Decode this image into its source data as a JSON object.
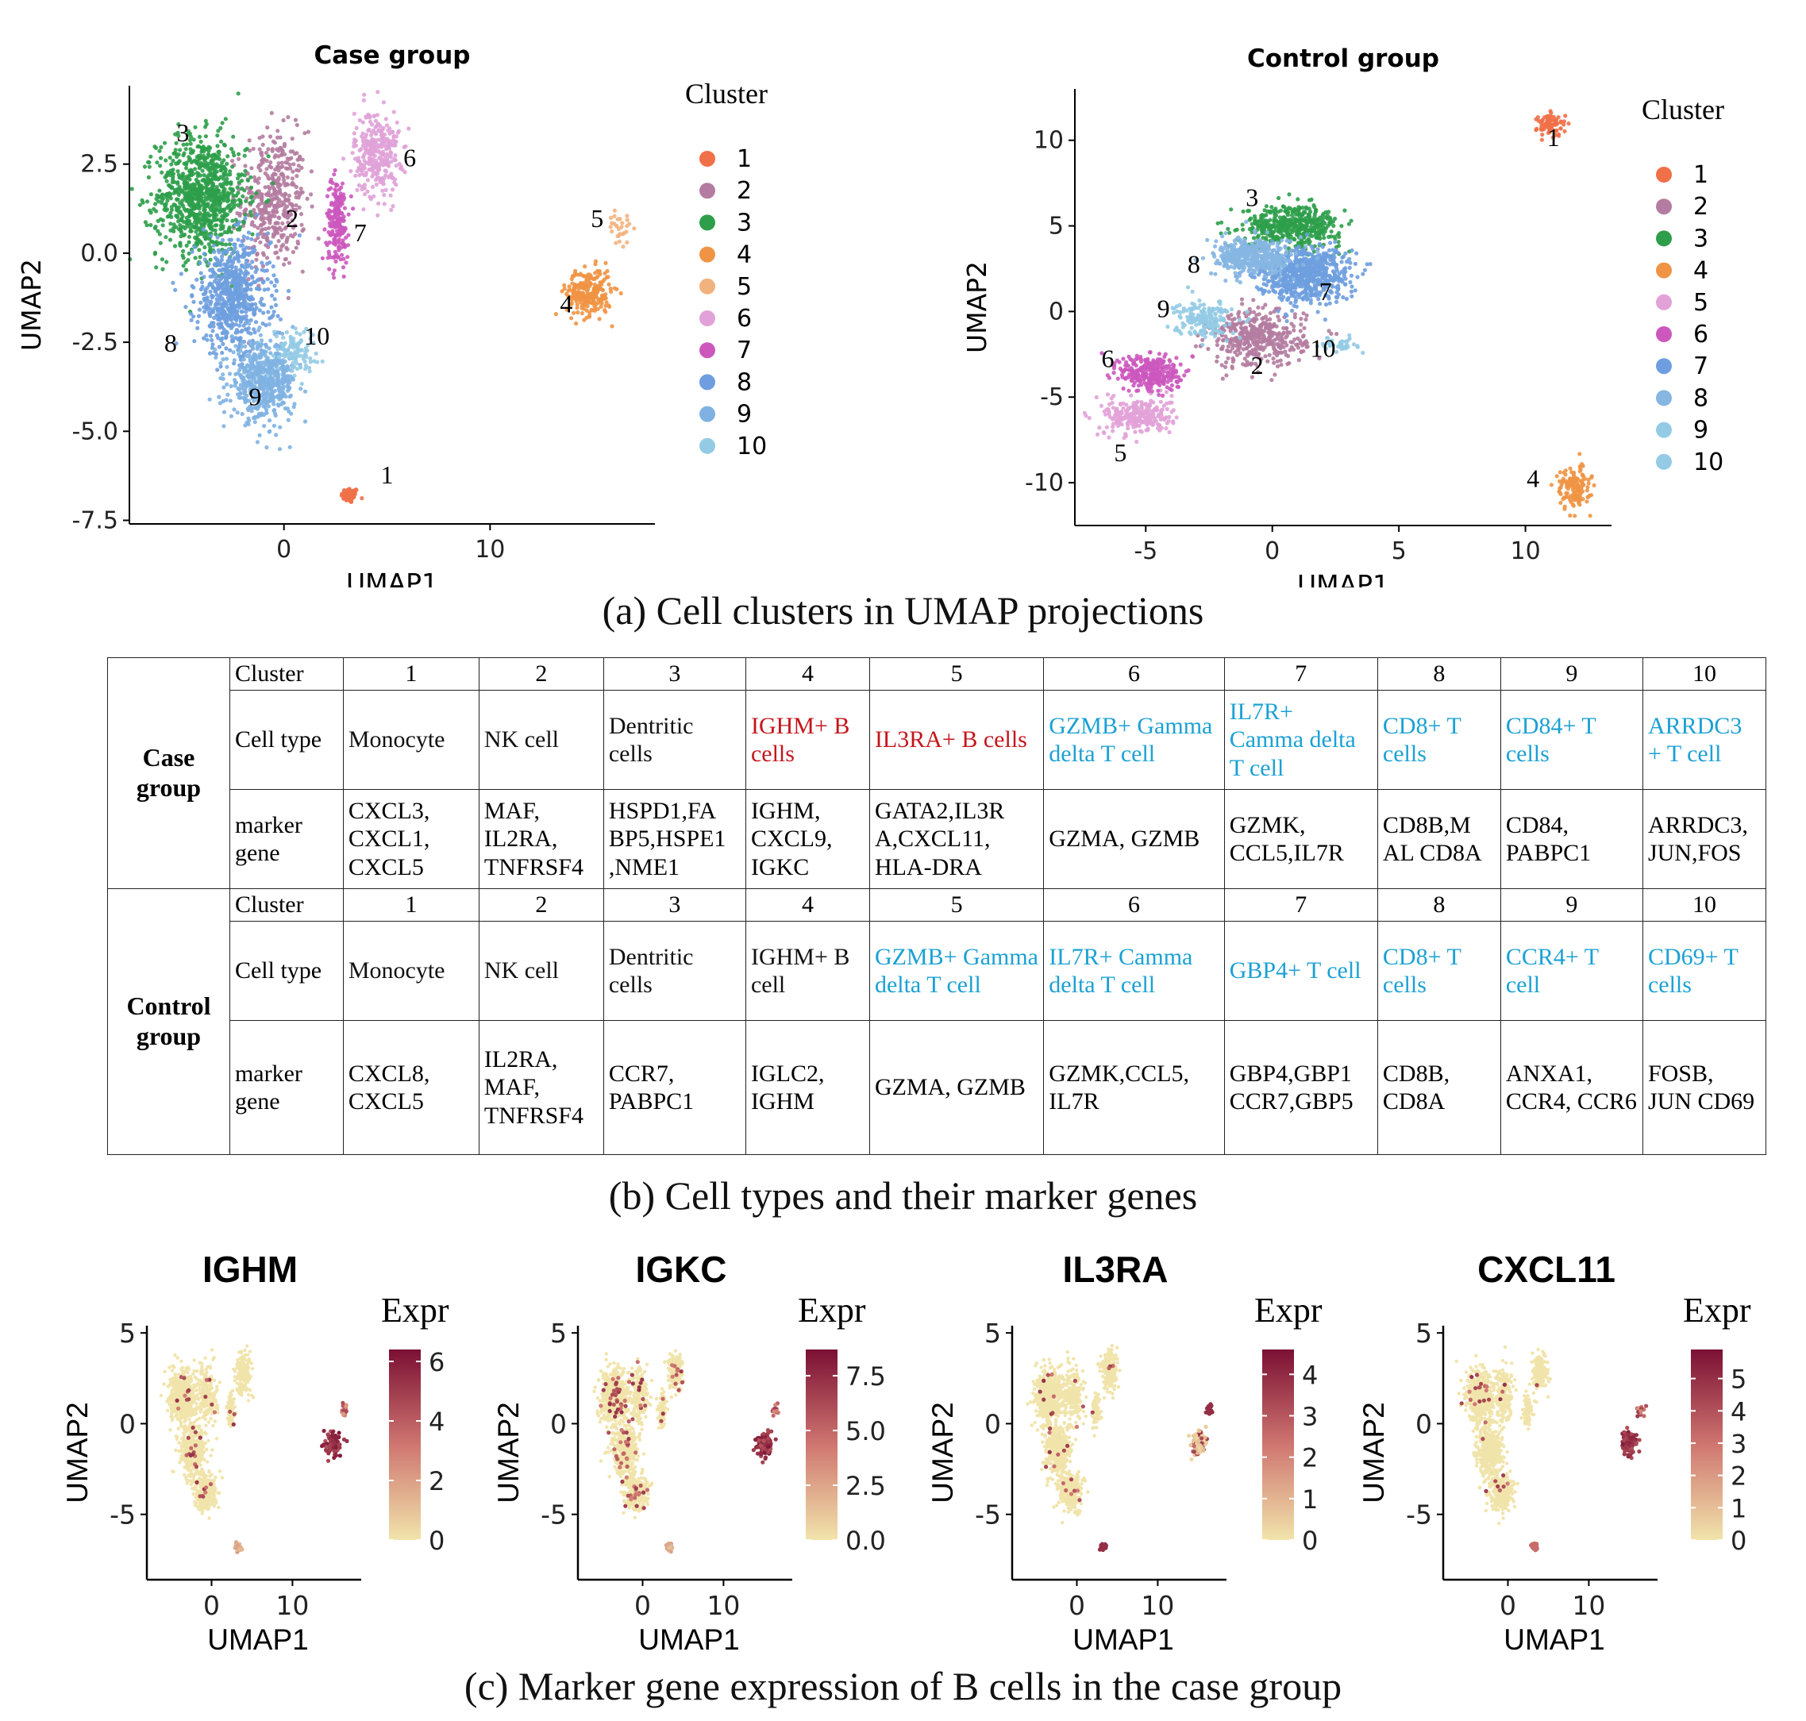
{
  "panel_a": {
    "caption": "(a) Cell clusters in UMAP projections",
    "legend_title": "Cluster",
    "colors": {
      "1": "#f07048",
      "2": "#b47ca0",
      "3": "#2e9e4a",
      "4": "#ef9444",
      "5": "#f2b27e",
      "6": "#e0a2d8",
      "7": "#cc58be",
      "8": "#6e9edf",
      "9": "#7fb2e2",
      "10": "#93cbe4"
    },
    "case_colors_map": {
      "1": "1",
      "2": "2",
      "3": "3",
      "4": "4",
      "5": "5",
      "6": "6",
      "7": "7",
      "8": "8",
      "9": "9",
      "10": "10"
    },
    "control_colors": {
      "1": "#f07048",
      "2": "#b47ca0",
      "3": "#2e9e4a",
      "4": "#ef9444",
      "5": "#e2a2d8",
      "6": "#cc58be",
      "7": "#6e9edf",
      "8": "#86b6e2",
      "9": "#93cbe4",
      "10": "#93cbe4"
    }
  },
  "chart_data": [
    {
      "type": "scatter",
      "title": "Case group",
      "xlabel": "UMAP1",
      "ylabel": "UMAP2",
      "xlim": [
        -7.5,
        18
      ],
      "ylim": [
        -7.6,
        4.7
      ],
      "xticks": [
        0,
        10
      ],
      "yticks": [
        2.5,
        0.0,
        -2.5,
        -5.0,
        -7.5
      ],
      "ytick_labels": [
        "2.5",
        "0.0",
        "-2.5",
        "-5.0",
        "-7.5"
      ],
      "legend": [
        "1",
        "2",
        "3",
        "4",
        "5",
        "6",
        "7",
        "8",
        "9",
        "10"
      ],
      "clusters": [
        {
          "id": "1",
          "center": [
            3.2,
            -6.8
          ],
          "spread": [
            0.35,
            0.18
          ],
          "n": 60,
          "label_at": [
            5.0,
            -6.3
          ]
        },
        {
          "id": "2",
          "center": [
            -0.5,
            1.5
          ],
          "spread": [
            1.3,
            1.6
          ],
          "n": 420,
          "label_at": [
            0.4,
            0.9
          ]
        },
        {
          "id": "3",
          "center": [
            -4.0,
            1.6
          ],
          "spread": [
            1.8,
            1.4
          ],
          "n": 900,
          "label_at": [
            -4.9,
            3.3
          ]
        },
        {
          "id": "4",
          "center": [
            14.8,
            -1.1
          ],
          "spread": [
            0.9,
            0.55
          ],
          "n": 260,
          "label_at": [
            13.7,
            -1.5
          ]
        },
        {
          "id": "5",
          "center": [
            16.3,
            0.7
          ],
          "spread": [
            0.45,
            0.35
          ],
          "n": 30,
          "label_at": [
            15.2,
            0.9
          ]
        },
        {
          "id": "6",
          "center": [
            4.5,
            2.8
          ],
          "spread": [
            0.9,
            1.0
          ],
          "n": 320,
          "label_at": [
            6.1,
            2.6
          ]
        },
        {
          "id": "7",
          "center": [
            2.6,
            0.9
          ],
          "spread": [
            0.45,
            1.0
          ],
          "n": 200,
          "label_at": [
            3.7,
            0.5
          ]
        },
        {
          "id": "8",
          "center": [
            -2.5,
            -1.2
          ],
          "spread": [
            1.5,
            1.3
          ],
          "n": 650,
          "label_at": [
            -5.5,
            -2.6
          ]
        },
        {
          "id": "9",
          "center": [
            -1.0,
            -3.6
          ],
          "spread": [
            1.3,
            0.9
          ],
          "n": 550,
          "label_at": [
            -1.4,
            -4.1
          ]
        },
        {
          "id": "10",
          "center": [
            0.5,
            -2.7
          ],
          "spread": [
            0.9,
            0.5
          ],
          "n": 100,
          "label_at": [
            1.6,
            -2.4
          ]
        }
      ]
    },
    {
      "type": "scatter",
      "title": "Control group",
      "xlabel": "UMAP1",
      "ylabel": "UMAP2",
      "xlim": [
        -7.8,
        13.4
      ],
      "ylim": [
        -12.5,
        13
      ],
      "xticks": [
        -5,
        0,
        5,
        10
      ],
      "yticks": [
        10,
        5,
        0,
        -5,
        -10
      ],
      "ytick_labels": [
        "10",
        "5",
        "0",
        "-5",
        "-10"
      ],
      "legend": [
        "1",
        "2",
        "3",
        "4",
        "5",
        "6",
        "7",
        "8",
        "9",
        "10"
      ],
      "clusters": [
        {
          "id": "1",
          "center": [
            11.0,
            10.9
          ],
          "spread": [
            0.45,
            0.55
          ],
          "n": 80,
          "label_at": [
            11.1,
            10.0
          ]
        },
        {
          "id": "2",
          "center": [
            -0.6,
            -1.6
          ],
          "spread": [
            1.6,
            1.4
          ],
          "n": 420,
          "label_at": [
            -0.6,
            -3.3
          ]
        },
        {
          "id": "3",
          "center": [
            0.8,
            5.0
          ],
          "spread": [
            1.6,
            1.0
          ],
          "n": 480,
          "label_at": [
            -0.8,
            6.5
          ]
        },
        {
          "id": "4",
          "center": [
            11.9,
            -10.3
          ],
          "spread": [
            0.55,
            1.0
          ],
          "n": 140,
          "label_at": [
            10.3,
            -9.9
          ]
        },
        {
          "id": "5",
          "center": [
            -5.3,
            -6.1
          ],
          "spread": [
            1.1,
            0.9
          ],
          "n": 260,
          "label_at": [
            -6.0,
            -8.4
          ]
        },
        {
          "id": "6",
          "center": [
            -4.8,
            -3.6
          ],
          "spread": [
            1.0,
            0.9
          ],
          "n": 300,
          "label_at": [
            -6.5,
            -2.9
          ]
        },
        {
          "id": "7",
          "center": [
            1.2,
            2.2
          ],
          "spread": [
            1.5,
            1.3
          ],
          "n": 700,
          "label_at": [
            2.1,
            1.0
          ]
        },
        {
          "id": "8",
          "center": [
            -0.7,
            3.2
          ],
          "spread": [
            1.3,
            0.9
          ],
          "n": 420,
          "label_at": [
            -3.1,
            2.6
          ]
        },
        {
          "id": "9",
          "center": [
            -2.7,
            -0.4
          ],
          "spread": [
            0.9,
            0.9
          ],
          "n": 180,
          "label_at": [
            -4.3,
            0.0
          ]
        },
        {
          "id": "10",
          "center": [
            2.6,
            -1.9
          ],
          "spread": [
            0.6,
            0.3
          ],
          "n": 40,
          "label_at": [
            2.0,
            -2.3
          ]
        }
      ]
    },
    {
      "type": "scatter",
      "title": "IGHM",
      "xlabel": "UMAP1",
      "ylabel": "UMAP2",
      "xlim": [
        -8.0,
        18.5
      ],
      "ylim": [
        -8.6,
        5.4
      ],
      "xticks": [
        0,
        10
      ],
      "yticks": [
        5,
        0,
        -5
      ],
      "colorbar": {
        "title": "Expr",
        "min": 0,
        "max": 6.4,
        "ticks": [
          6,
          4,
          2,
          0
        ],
        "tick_labels": [
          "6",
          "4",
          "2",
          "0"
        ]
      },
      "bcell_expression": "high",
      "scattered_expressing_cells": 40
    },
    {
      "type": "scatter",
      "title": "IGKC",
      "xlabel": "UMAP1",
      "ylabel": "UMAP2",
      "xlim": [
        -8.0,
        18.5
      ],
      "ylim": [
        -8.6,
        5.4
      ],
      "xticks": [
        0,
        10
      ],
      "yticks": [
        5,
        0,
        -5
      ],
      "colorbar": {
        "title": "Expr",
        "min": 0,
        "max": 8.7,
        "ticks": [
          7.5,
          5.0,
          2.5,
          0.0
        ],
        "tick_labels": [
          "7.5",
          "5.0",
          "2.5",
          "0.0"
        ]
      },
      "bcell_expression": "high",
      "scattered_expressing_cells": 110
    },
    {
      "type": "scatter",
      "title": "IL3RA",
      "xlabel": "UMAP1",
      "ylabel": "UMAP2",
      "xlim": [
        -8.0,
        18.5
      ],
      "ylim": [
        -8.6,
        5.4
      ],
      "xticks": [
        0,
        10
      ],
      "yticks": [
        5,
        0,
        -5
      ],
      "colorbar": {
        "title": "Expr",
        "min": 0,
        "max": 4.6,
        "ticks": [
          4,
          3,
          2,
          1,
          0
        ],
        "tick_labels": [
          "4",
          "3",
          "2",
          "1",
          "0"
        ]
      },
      "bcell_expression": "medium",
      "scattered_expressing_cells": 30
    },
    {
      "type": "scatter",
      "title": "CXCL11",
      "xlabel": "UMAP1",
      "ylabel": "UMAP2",
      "xlim": [
        -8.0,
        18.5
      ],
      "ylim": [
        -8.6,
        5.4
      ],
      "xticks": [
        0,
        10
      ],
      "yticks": [
        5,
        0,
        -5
      ],
      "colorbar": {
        "title": "Expr",
        "min": 0,
        "max": 5.9,
        "ticks": [
          5,
          4,
          3,
          2,
          1,
          0
        ],
        "tick_labels": [
          "5",
          "4",
          "3",
          "2",
          "1",
          "0"
        ]
      },
      "bcell_expression": "high",
      "scattered_expressing_cells": 30
    }
  ],
  "table": {
    "caption": "(b) Cell types and their marker genes",
    "case": {
      "group_label": "Case group",
      "row_labels": {
        "cluster": "Cluster",
        "cell_type": "Cell type",
        "marker_gene": "marker gene"
      },
      "clusters": [
        "1",
        "2",
        "3",
        "4",
        "5",
        "6",
        "7",
        "8",
        "9",
        "10"
      ],
      "cell_types": [
        "Monocyte",
        "NK cell",
        "Dentritic cells",
        "IGHM+ B cells",
        "IL3RA+ B cells",
        "GZMB+ Gamma delta T cell",
        "IL7R+ Camma delta T cell",
        "CD8+ T cells",
        "CD84+ T cells",
        "ARRDC3 + T cell"
      ],
      "cell_type_colors": [
        "black",
        "black",
        "black",
        "red",
        "red",
        "blue",
        "blue",
        "blue",
        "blue",
        "blue"
      ],
      "markers": [
        "CXCL3, CXCL1, CXCL5",
        "MAF, IL2RA, TNFRSF4",
        "HSPD1,FA BP5,HSPE1 ,NME1",
        "IGHM, CXCL9, IGKC",
        "GATA2,IL3R A,CXCL11, HLA-DRA",
        "GZMA, GZMB",
        "GZMK, CCL5,IL7R",
        "CD8B,M AL CD8A",
        "CD84, PABPC1",
        "ARRDC3, JUN,FOS"
      ]
    },
    "control": {
      "group_label": "Control group",
      "row_labels": {
        "cluster": "Cluster",
        "cell_type": "Cell type",
        "marker_gene": "marker gene"
      },
      "clusters": [
        "1",
        "2",
        "3",
        "4",
        "5",
        "6",
        "7",
        "8",
        "9",
        "10"
      ],
      "cell_types": [
        "Monocyte",
        "NK cell",
        "Dentritic cells",
        "IGHM+ B cell",
        "GZMB+ Gamma delta T cell",
        "IL7R+ Camma delta T cell",
        "GBP4+ T cell",
        "CD8+ T cells",
        "CCR4+ T cell",
        "CD69+ T cells"
      ],
      "cell_type_colors": [
        "black",
        "black",
        "black",
        "black",
        "blue",
        "blue",
        "blue",
        "blue",
        "blue",
        "blue"
      ],
      "markers": [
        "CXCL8, CXCL5",
        "IL2RA, MAF, TNFRSF4",
        "CCR7, PABPC1",
        "IGLC2, IGHM",
        "GZMA, GZMB",
        "GZMK,CCL5, IL7R",
        "GBP4,GBP1 CCR7,GBP5",
        "CD8B, CD8A",
        "ANXA1, CCR4, CCR6",
        "FOSB, JUN CD69"
      ]
    }
  },
  "panel_c": {
    "caption": "(c) Marker gene expression of B cells in the case group",
    "low_color": "#f1e4ab",
    "high_color": "#7b1034"
  }
}
